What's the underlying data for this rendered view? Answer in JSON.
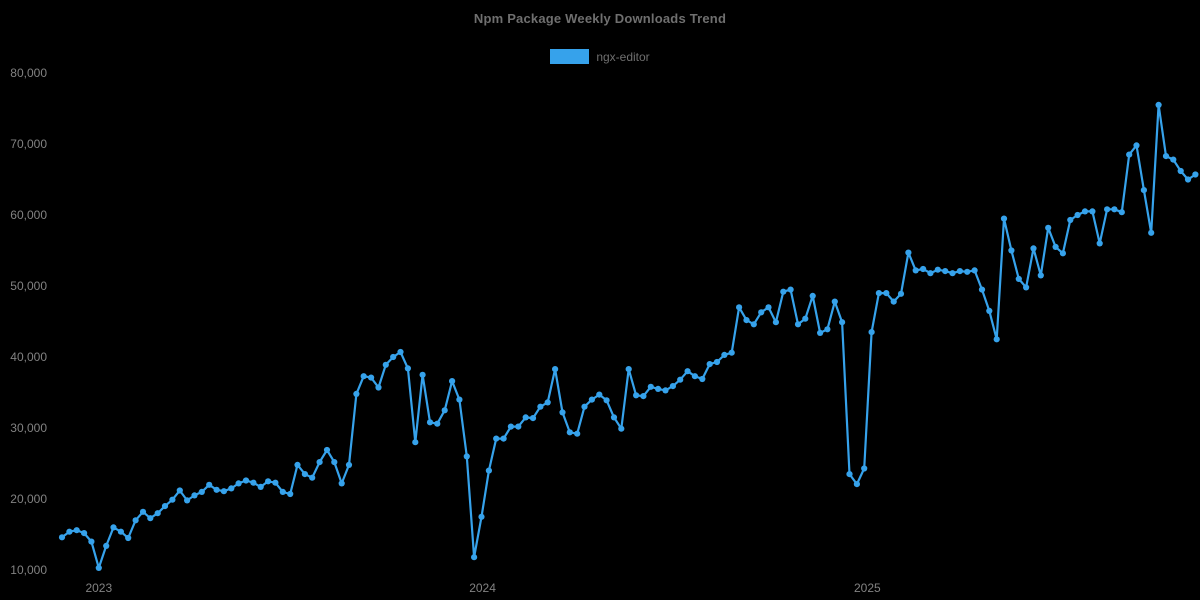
{
  "chart": {
    "title": "Npm Package Weekly Downloads Trend",
    "legend": {
      "items": [
        {
          "label": "ngx-editor",
          "color": "#36A2EB"
        }
      ]
    },
    "colors": {
      "background": "#000000",
      "series": "#36A2EB",
      "title_text": "#6f6f6f",
      "tick_text": "#828282"
    }
  },
  "chart_data": {
    "type": "line",
    "title": "Npm Package Weekly Downloads Trend",
    "xlabel": "",
    "ylabel": "",
    "legend_position": "top",
    "grid": false,
    "point_style": "filled-circle-markers",
    "ylim": [
      10000,
      80000
    ],
    "y_ticks": [
      10000,
      20000,
      30000,
      40000,
      50000,
      60000,
      70000,
      80000
    ],
    "y_tick_labels": [
      "10,000",
      "20,000",
      "30,000",
      "40,000",
      "50,000",
      "60,000",
      "70,000",
      "80,000"
    ],
    "x_tick_labels": [
      "2023",
      "2024",
      "2025"
    ],
    "x_unit": "week",
    "series": [
      {
        "name": "ngx-editor",
        "color": "#36A2EB",
        "start_date": "2022-11-27",
        "interval_days": 7,
        "values": [
          14600,
          15400,
          15600,
          15200,
          14000,
          10300,
          13400,
          16000,
          15400,
          14500,
          17000,
          18200,
          17300,
          18000,
          19000,
          19900,
          21200,
          19800,
          20500,
          21000,
          22000,
          21300,
          21100,
          21500,
          22200,
          22600,
          22300,
          21700,
          22500,
          22300,
          21000,
          20700,
          24800,
          23500,
          23000,
          25200,
          26900,
          25200,
          22200,
          24800,
          34800,
          37300,
          37100,
          35700,
          38900,
          40000,
          40700,
          38400,
          28000,
          37500,
          30800,
          30600,
          32500,
          36600,
          34000,
          26000,
          11800,
          17500,
          24000,
          28500,
          28500,
          30200,
          30200,
          31500,
          31400,
          33000,
          33600,
          38300,
          32200,
          29400,
          29200,
          33000,
          34000,
          34700,
          33900,
          31500,
          29900,
          38300,
          34600,
          34500,
          35800,
          35500,
          35300,
          35900,
          36800,
          38000,
          37300,
          36900,
          39000,
          39300,
          40300,
          40600,
          47000,
          45200,
          44600,
          46300,
          47000,
          44900,
          49200,
          49500,
          44600,
          45400,
          48600,
          43400,
          43900,
          47800,
          44900,
          23500,
          22100,
          24300,
          43500,
          49000,
          49000,
          47800,
          48900,
          54700,
          52200,
          52400,
          51800,
          52300,
          52100,
          51800,
          52100,
          52000,
          52200,
          49500,
          46500,
          42500,
          59500,
          55000,
          51000,
          49800,
          55300,
          51500,
          58200,
          55500,
          54600,
          59300,
          60000,
          60500,
          60500,
          56000,
          60800,
          60800,
          60400,
          68500,
          69800,
          63500,
          57500,
          75500,
          68300,
          67800,
          66200,
          65000,
          65700
        ]
      }
    ]
  }
}
